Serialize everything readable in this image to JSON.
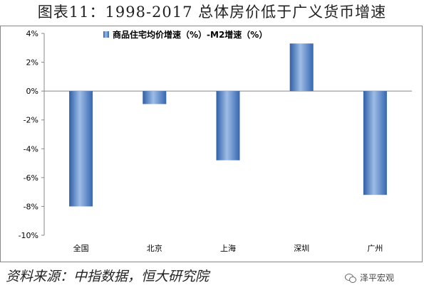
{
  "title": "图表11：1998-2017 总体房价低于广义货币增速",
  "source": "资料来源：中指数据，恒大研究院",
  "watermark": "泽平宏观",
  "chart_data": {
    "type": "bar",
    "categories": [
      "全国",
      "北京",
      "上海",
      "深圳",
      "广州"
    ],
    "series": [
      {
        "name": "商品住宅均价增速（%）-M2增速（%）",
        "values": [
          -8.0,
          -0.9,
          -4.8,
          3.3,
          -7.2
        ]
      }
    ],
    "ylim": [
      -10,
      4
    ],
    "yticks": [
      4,
      2,
      0,
      -2,
      -4,
      -6,
      -8,
      -10
    ],
    "ytick_labels": [
      "4%",
      "2%",
      "0%",
      "-2%",
      "-4%",
      "-6%",
      "-8%",
      "-10%"
    ],
    "legend_position": "top-center",
    "grid": false,
    "bar_color": "#4a7cc2"
  }
}
